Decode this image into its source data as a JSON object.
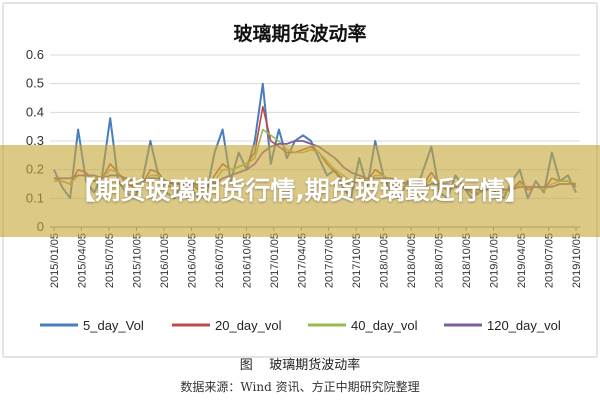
{
  "chart_data": {
    "type": "line",
    "title": "玻璃期货波动率",
    "xlabel": "",
    "ylabel": "",
    "ylim": [
      0,
      0.6
    ],
    "yticks": [
      "0",
      "0.1",
      "0.2",
      "0.3",
      "0.4",
      "0.5",
      "0.6"
    ],
    "x_ticks": [
      "2015/01/05",
      "2015/04/05",
      "2015/07/05",
      "2015/10/05",
      "2016/01/05",
      "2016/04/05",
      "2016/07/05",
      "2016/10/05",
      "2017/01/05",
      "2017/04/05",
      "2017/07/05",
      "2017/10/05",
      "2018/01/05",
      "2018/04/05",
      "2018/07/05",
      "2018/10/05",
      "2019/01/05",
      "2019/04/05",
      "2019/07/05",
      "2019/10/05"
    ],
    "grid": "horizontal",
    "legend_position": "bottom",
    "series": [
      {
        "name": "5_day_Vol",
        "color": "#4a7ebb",
        "values": [
          0.2,
          0.14,
          0.1,
          0.34,
          0.16,
          0.12,
          0.18,
          0.38,
          0.16,
          0.12,
          0.1,
          0.16,
          0.3,
          0.18,
          0.12,
          0.1,
          0.16,
          0.14,
          0.1,
          0.12,
          0.26,
          0.34,
          0.16,
          0.26,
          0.2,
          0.3,
          0.5,
          0.22,
          0.34,
          0.24,
          0.3,
          0.32,
          0.3,
          0.24,
          0.18,
          0.2,
          0.14,
          0.1,
          0.24,
          0.14,
          0.3,
          0.18,
          0.12,
          0.1,
          0.16,
          0.12,
          0.2,
          0.28,
          0.12,
          0.1,
          0.18,
          0.14,
          0.1,
          0.12,
          0.16,
          0.12,
          0.1,
          0.16,
          0.2,
          0.1,
          0.16,
          0.12,
          0.26,
          0.16,
          0.18,
          0.12
        ]
      },
      {
        "name": "20_day_vol",
        "color": "#be4b48",
        "values": [
          0.17,
          0.16,
          0.15,
          0.2,
          0.19,
          0.16,
          0.17,
          0.22,
          0.19,
          0.15,
          0.14,
          0.15,
          0.2,
          0.19,
          0.15,
          0.13,
          0.14,
          0.15,
          0.13,
          0.13,
          0.18,
          0.22,
          0.2,
          0.21,
          0.22,
          0.26,
          0.42,
          0.3,
          0.28,
          0.26,
          0.26,
          0.27,
          0.28,
          0.26,
          0.22,
          0.19,
          0.17,
          0.14,
          0.17,
          0.16,
          0.2,
          0.18,
          0.15,
          0.13,
          0.14,
          0.13,
          0.15,
          0.19,
          0.15,
          0.13,
          0.14,
          0.14,
          0.12,
          0.12,
          0.13,
          0.13,
          0.12,
          0.13,
          0.16,
          0.13,
          0.14,
          0.13,
          0.17,
          0.16,
          0.16,
          0.14
        ]
      },
      {
        "name": "40_day_vol",
        "color": "#98b954",
        "values": [
          0.16,
          0.16,
          0.15,
          0.18,
          0.18,
          0.17,
          0.17,
          0.2,
          0.19,
          0.16,
          0.15,
          0.15,
          0.18,
          0.18,
          0.16,
          0.14,
          0.14,
          0.15,
          0.14,
          0.13,
          0.16,
          0.2,
          0.2,
          0.21,
          0.22,
          0.24,
          0.34,
          0.32,
          0.3,
          0.27,
          0.26,
          0.26,
          0.27,
          0.26,
          0.23,
          0.2,
          0.18,
          0.16,
          0.16,
          0.16,
          0.18,
          0.18,
          0.16,
          0.14,
          0.14,
          0.13,
          0.14,
          0.17,
          0.16,
          0.14,
          0.14,
          0.14,
          0.13,
          0.12,
          0.13,
          0.13,
          0.12,
          0.13,
          0.15,
          0.14,
          0.14,
          0.13,
          0.15,
          0.16,
          0.16,
          0.15
        ]
      },
      {
        "name": "120_day_vol",
        "color": "#7d5fa0",
        "values": [
          0.17,
          0.17,
          0.17,
          0.18,
          0.18,
          0.18,
          0.17,
          0.18,
          0.18,
          0.17,
          0.16,
          0.16,
          0.17,
          0.17,
          0.16,
          0.15,
          0.15,
          0.15,
          0.15,
          0.14,
          0.15,
          0.17,
          0.18,
          0.19,
          0.2,
          0.22,
          0.26,
          0.28,
          0.29,
          0.29,
          0.3,
          0.3,
          0.29,
          0.28,
          0.26,
          0.24,
          0.21,
          0.19,
          0.18,
          0.17,
          0.17,
          0.17,
          0.17,
          0.16,
          0.15,
          0.14,
          0.14,
          0.15,
          0.15,
          0.15,
          0.14,
          0.14,
          0.14,
          0.13,
          0.13,
          0.13,
          0.13,
          0.13,
          0.14,
          0.14,
          0.14,
          0.14,
          0.14,
          0.15,
          0.15,
          0.15
        ]
      }
    ]
  },
  "caption": "图    玻璃期货波动率",
  "source": "数据来源：Wind 资讯、方正中期研究院整理",
  "overlay_text": "【期货玻璃期货行情,期货玻璃最近行情】"
}
